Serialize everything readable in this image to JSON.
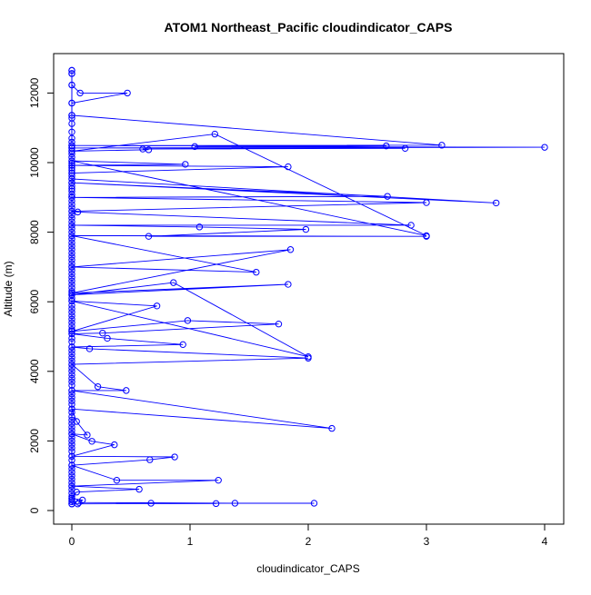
{
  "chart_data": {
    "type": "line",
    "title": "ATOM1 Northeast_Pacific cloudindicator_CAPS",
    "xlabel": "cloudindicator_CAPS",
    "ylabel": "Altitude (m)",
    "xlim": [
      0,
      4
    ],
    "ylim": [
      0,
      12700
    ],
    "x_ticks": [
      0,
      1,
      2,
      3,
      4
    ],
    "y_ticks": [
      0,
      2000,
      4000,
      6000,
      8000,
      10000,
      12000
    ],
    "grid": false,
    "legend": "none",
    "series_color": "#0000ff",
    "marker": "open-circle",
    "points": [
      {
        "x": 0,
        "y": 12650
      },
      {
        "x": 0,
        "y": 12560
      },
      {
        "x": 0,
        "y": 12230
      },
      {
        "x": 0.07,
        "y": 12000
      },
      {
        "x": 0.47,
        "y": 12000
      },
      {
        "x": 0,
        "y": 11710
      },
      {
        "x": 0,
        "y": 11360
      },
      {
        "x": 3.13,
        "y": 10500
      },
      {
        "x": 0,
        "y": 10490
      },
      {
        "x": 2.66,
        "y": 10480
      },
      {
        "x": 1.04,
        "y": 10460
      },
      {
        "x": 4.0,
        "y": 10440
      },
      {
        "x": 0,
        "y": 10420
      },
      {
        "x": 2.82,
        "y": 10410
      },
      {
        "x": 0.6,
        "y": 10390
      },
      {
        "x": 0.65,
        "y": 10370
      },
      {
        "x": 0,
        "y": 10330
      },
      {
        "x": 1.21,
        "y": 10820
      },
      {
        "x": 3.0,
        "y": 7900
      },
      {
        "x": 0,
        "y": 10050
      },
      {
        "x": 0.96,
        "y": 9950
      },
      {
        "x": 0,
        "y": 9920
      },
      {
        "x": 1.83,
        "y": 9880
      },
      {
        "x": 0,
        "y": 9700
      },
      {
        "x": 0,
        "y": 9530
      },
      {
        "x": 3.59,
        "y": 8840
      },
      {
        "x": 0,
        "y": 9420
      },
      {
        "x": 2.67,
        "y": 9030
      },
      {
        "x": 0,
        "y": 9000
      },
      {
        "x": 3.0,
        "y": 8850
      },
      {
        "x": 0,
        "y": 8600
      },
      {
        "x": 0.05,
        "y": 8580
      },
      {
        "x": 2.87,
        "y": 8200
      },
      {
        "x": 0,
        "y": 8200
      },
      {
        "x": 1.08,
        "y": 8150
      },
      {
        "x": 1.98,
        "y": 8080
      },
      {
        "x": 0.65,
        "y": 7880
      },
      {
        "x": 3.0,
        "y": 7880
      },
      {
        "x": 0,
        "y": 7900
      },
      {
        "x": 1.56,
        "y": 6850
      },
      {
        "x": 0,
        "y": 7000
      },
      {
        "x": 1.85,
        "y": 7500
      },
      {
        "x": 0,
        "y": 6250
      },
      {
        "x": 1.83,
        "y": 6500
      },
      {
        "x": 0,
        "y": 6200
      },
      {
        "x": 0.86,
        "y": 6550
      },
      {
        "x": 2.0,
        "y": 4420
      },
      {
        "x": 0,
        "y": 6020
      },
      {
        "x": 0.72,
        "y": 5880
      },
      {
        "x": 0,
        "y": 5150
      },
      {
        "x": 0.98,
        "y": 5460
      },
      {
        "x": 1.75,
        "y": 5360
      },
      {
        "x": 0.26,
        "y": 5100
      },
      {
        "x": 0,
        "y": 5080
      },
      {
        "x": 0.3,
        "y": 4950
      },
      {
        "x": 0.94,
        "y": 4770
      },
      {
        "x": 0,
        "y": 4700
      },
      {
        "x": 0.15,
        "y": 4650
      },
      {
        "x": 2.0,
        "y": 4380
      },
      {
        "x": 0,
        "y": 4200
      },
      {
        "x": 0.22,
        "y": 3560
      },
      {
        "x": 0.46,
        "y": 3450
      },
      {
        "x": 0,
        "y": 3450
      },
      {
        "x": 2.2,
        "y": 2360
      },
      {
        "x": 0,
        "y": 2920
      },
      {
        "x": 0.04,
        "y": 2560
      },
      {
        "x": 0.13,
        "y": 2170
      },
      {
        "x": 0,
        "y": 2200
      },
      {
        "x": 0.17,
        "y": 1990
      },
      {
        "x": 0.36,
        "y": 1890
      },
      {
        "x": 0,
        "y": 1560
      },
      {
        "x": 0.87,
        "y": 1540
      },
      {
        "x": 0.66,
        "y": 1460
      },
      {
        "x": 0,
        "y": 1300
      },
      {
        "x": 0.38,
        "y": 870
      },
      {
        "x": 1.24,
        "y": 870
      },
      {
        "x": 0,
        "y": 700
      },
      {
        "x": 0.57,
        "y": 610
      },
      {
        "x": 0.04,
        "y": 530
      },
      {
        "x": 0,
        "y": 350
      },
      {
        "x": 0.09,
        "y": 300
      },
      {
        "x": 0.06,
        "y": 230
      },
      {
        "x": 1.38,
        "y": 210
      },
      {
        "x": 2.05,
        "y": 210
      },
      {
        "x": 0.67,
        "y": 210
      },
      {
        "x": 1.22,
        "y": 200
      },
      {
        "x": 0.05,
        "y": 190
      },
      {
        "x": 0,
        "y": 190
      }
    ],
    "baseline_points": {
      "x": 0,
      "y": [
        12650,
        12560,
        12230,
        11710,
        11360,
        11280,
        11120,
        10880,
        10700,
        10590,
        10490,
        10420,
        10330,
        10250,
        10150,
        10050,
        9980,
        9920,
        9850,
        9780,
        9700,
        9620,
        9530,
        9420,
        9330,
        9250,
        9180,
        9080,
        9000,
        8900,
        8800,
        8700,
        8600,
        8500,
        8400,
        8300,
        8200,
        8100,
        8000,
        7900,
        7800,
        7700,
        7600,
        7500,
        7400,
        7300,
        7200,
        7100,
        7000,
        6900,
        6800,
        6700,
        6600,
        6500,
        6400,
        6300,
        6200,
        6100,
        6020,
        5900,
        5800,
        5700,
        5600,
        5500,
        5400,
        5300,
        5200,
        5150,
        5080,
        4950,
        4850,
        4700,
        4600,
        4500,
        4400,
        4300,
        4200,
        4100,
        4000,
        3900,
        3800,
        3700,
        3600,
        3450,
        3350,
        3250,
        3150,
        3050,
        2920,
        2820,
        2700,
        2600,
        2500,
        2400,
        2300,
        2200,
        2100,
        2000,
        1900,
        1800,
        1700,
        1560,
        1450,
        1300,
        1200,
        1100,
        1000,
        900,
        800,
        700,
        600,
        500,
        400,
        350,
        300,
        250,
        190
      ]
    }
  }
}
